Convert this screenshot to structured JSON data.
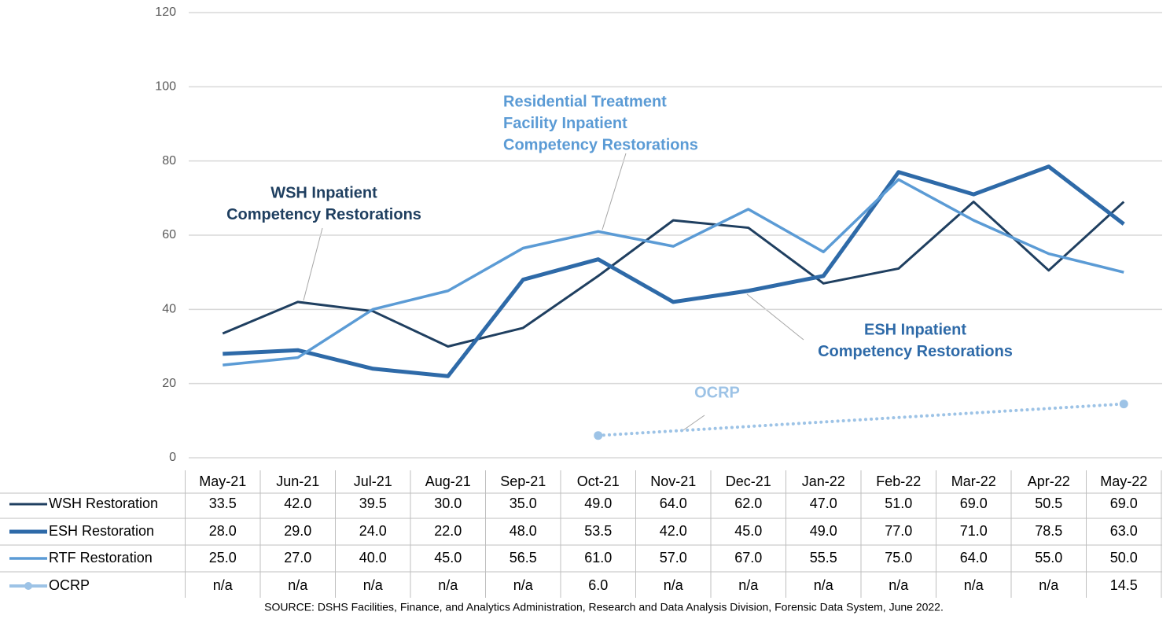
{
  "chart_data": {
    "type": "line",
    "categories": [
      "May-21",
      "Jun-21",
      "Jul-21",
      "Aug-21",
      "Sep-21",
      "Oct-21",
      "Nov-21",
      "Dec-21",
      "Jan-22",
      "Feb-22",
      "Mar-22",
      "Apr-22",
      "May-22"
    ],
    "series": [
      {
        "name": "WSH Restoration",
        "color": "#1f3f60",
        "width": 3,
        "values": [
          33.5,
          42,
          39.5,
          30,
          35,
          49,
          64,
          62,
          47,
          51,
          69,
          50.5,
          69
        ],
        "value_labels": [
          "33.5",
          "42.0",
          "39.5",
          "30.0",
          "35.0",
          "49.0",
          "64.0",
          "62.0",
          "47.0",
          "51.0",
          "69.0",
          "50.5",
          "69.0"
        ]
      },
      {
        "name": "ESH Restoration",
        "color": "#2e6aa8",
        "width": 5,
        "values": [
          28,
          29,
          24,
          22,
          48,
          53.5,
          42,
          45,
          49,
          77,
          71,
          78.5,
          63
        ],
        "value_labels": [
          "28.0",
          "29.0",
          "24.0",
          "22.0",
          "48.0",
          "53.5",
          "42.0",
          "45.0",
          "49.0",
          "77.0",
          "71.0",
          "78.5",
          "63.0"
        ]
      },
      {
        "name": "RTF Restoration",
        "color": "#5b9bd5",
        "width": 3.5,
        "values": [
          25,
          27,
          40,
          45,
          56.5,
          61,
          57,
          67,
          55.5,
          75,
          64,
          55,
          50
        ],
        "value_labels": [
          "25.0",
          "27.0",
          "40.0",
          "45.0",
          "56.5",
          "61.0",
          "57.0",
          "67.0",
          "55.5",
          "75.0",
          "64.0",
          "55.0",
          "50.0"
        ]
      },
      {
        "name": "OCRP",
        "color": "#9dc3e6",
        "width": 4,
        "dotted": true,
        "markers": true,
        "connect_gaps": true,
        "values": [
          null,
          null,
          null,
          null,
          null,
          6,
          null,
          null,
          null,
          null,
          null,
          null,
          14.5
        ],
        "value_labels": [
          "n/a",
          "n/a",
          "n/a",
          "n/a",
          "n/a",
          "6.0",
          "n/a",
          "n/a",
          "n/a",
          "n/a",
          "n/a",
          "n/a",
          "14.5"
        ]
      }
    ],
    "ylim": [
      0,
      120
    ],
    "yticks": [
      0,
      20,
      40,
      60,
      80,
      100,
      120
    ],
    "grid": true,
    "annotations": [
      {
        "lines": [
          "WSH Inpatient",
          "Competency Restorations"
        ],
        "color": "#1f3f60"
      },
      {
        "lines": [
          "Residential Treatment",
          "Facility Inpatient",
          "Competency Restorations"
        ],
        "color": "#5b9bd5"
      },
      {
        "lines": [
          "ESH Inpatient",
          "Competency Restorations"
        ],
        "color": "#2e6aa8"
      },
      {
        "lines": [
          "OCRP"
        ],
        "color": "#9dc3e6"
      }
    ],
    "source": "SOURCE: DSHS Facilities, Finance, and Analytics Administration, Research and Data Analysis Division, Forensic Data System, June 2022."
  }
}
